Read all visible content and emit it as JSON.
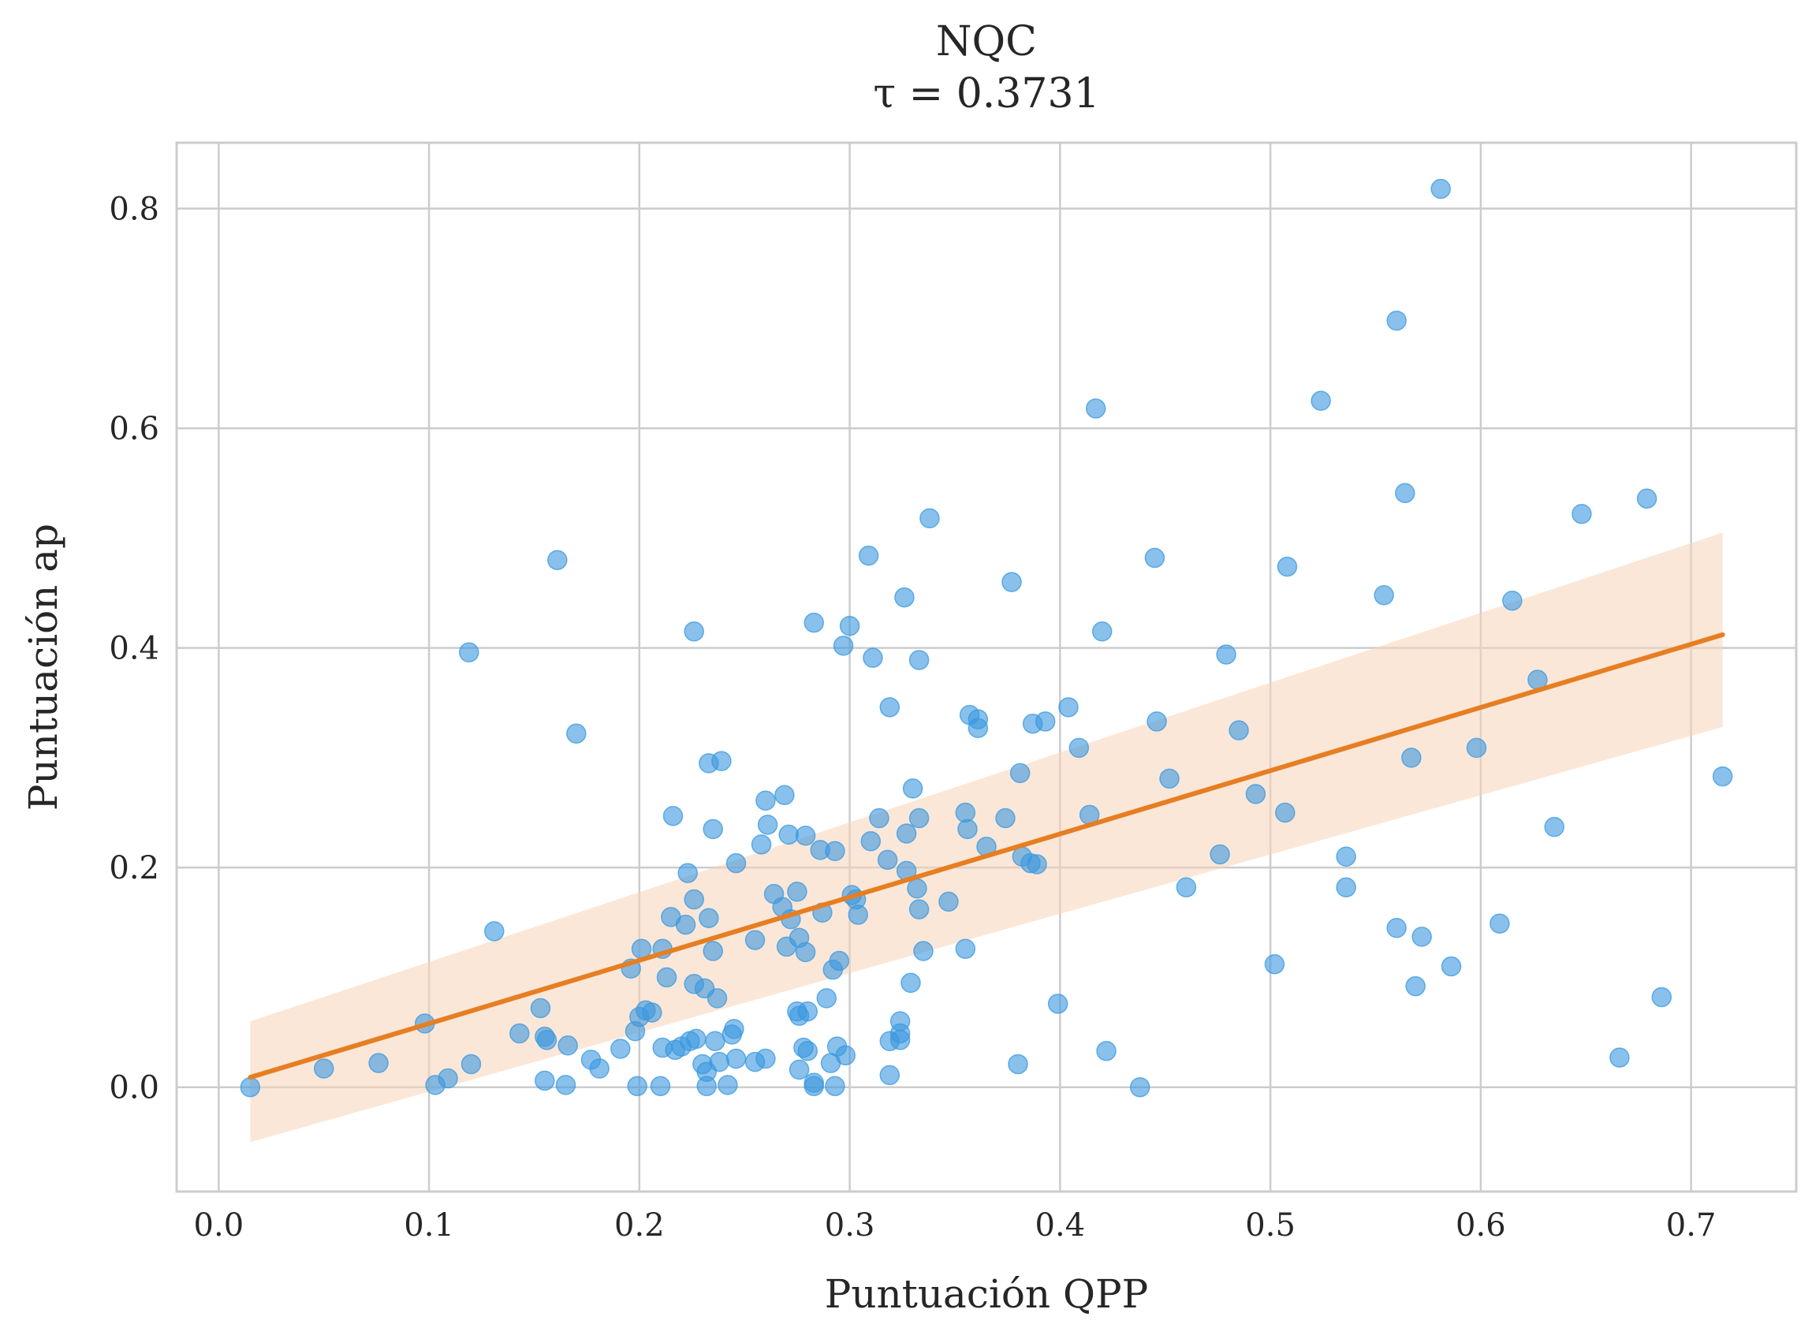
{
  "chart_data": {
    "type": "scatter",
    "title": "NQC",
    "subtitle": "τ = 0.3731",
    "xlabel": "Puntuación QPP",
    "ylabel": "Puntuación ap",
    "xlim": [
      -0.02,
      0.75
    ],
    "ylim": [
      -0.095,
      0.86
    ],
    "xticks": [
      0.0,
      0.1,
      0.2,
      0.3,
      0.4,
      0.5,
      0.6,
      0.7
    ],
    "xtick_labels": [
      "0.0",
      "0.1",
      "0.2",
      "0.3",
      "0.4",
      "0.5",
      "0.6",
      "0.7"
    ],
    "yticks": [
      0.0,
      0.2,
      0.4,
      0.6,
      0.8
    ],
    "ytick_labels": [
      "0.0",
      "0.2",
      "0.4",
      "0.6",
      "0.8"
    ],
    "grid": true,
    "colors": {
      "points": "#3a98e0",
      "regression": "#e67e22",
      "band": "#f7d4b8",
      "grid": "#cccccc",
      "text": "#262626"
    },
    "regression": {
      "x": [
        0.015,
        0.715
      ],
      "y": [
        0.009,
        0.412
      ],
      "ci_lower": [
        -0.05,
        0.328
      ],
      "ci_upper": [
        0.06,
        0.505
      ]
    },
    "points": [
      [
        0.015,
        0.0
      ],
      [
        0.05,
        0.017
      ],
      [
        0.076,
        0.022
      ],
      [
        0.098,
        0.058
      ],
      [
        0.103,
        0.002
      ],
      [
        0.109,
        0.008
      ],
      [
        0.119,
        0.396
      ],
      [
        0.12,
        0.021
      ],
      [
        0.131,
        0.142
      ],
      [
        0.143,
        0.049
      ],
      [
        0.153,
        0.072
      ],
      [
        0.155,
        0.046
      ],
      [
        0.155,
        0.006
      ],
      [
        0.156,
        0.043
      ],
      [
        0.161,
        0.48
      ],
      [
        0.165,
        0.002
      ],
      [
        0.166,
        0.038
      ],
      [
        0.17,
        0.322
      ],
      [
        0.177,
        0.025
      ],
      [
        0.181,
        0.017
      ],
      [
        0.191,
        0.035
      ],
      [
        0.196,
        0.108
      ],
      [
        0.198,
        0.051
      ],
      [
        0.199,
        0.001
      ],
      [
        0.2,
        0.064
      ],
      [
        0.201,
        0.126
      ],
      [
        0.203,
        0.07
      ],
      [
        0.206,
        0.068
      ],
      [
        0.21,
        0.001
      ],
      [
        0.211,
        0.126
      ],
      [
        0.211,
        0.036
      ],
      [
        0.213,
        0.1
      ],
      [
        0.215,
        0.155
      ],
      [
        0.216,
        0.247
      ],
      [
        0.217,
        0.034
      ],
      [
        0.22,
        0.037
      ],
      [
        0.222,
        0.148
      ],
      [
        0.223,
        0.195
      ],
      [
        0.224,
        0.042
      ],
      [
        0.226,
        0.415
      ],
      [
        0.226,
        0.171
      ],
      [
        0.226,
        0.094
      ],
      [
        0.227,
        0.044
      ],
      [
        0.23,
        0.021
      ],
      [
        0.231,
        0.09
      ],
      [
        0.232,
        0.014
      ],
      [
        0.232,
        0.001
      ],
      [
        0.233,
        0.154
      ],
      [
        0.233,
        0.295
      ],
      [
        0.235,
        0.235
      ],
      [
        0.235,
        0.124
      ],
      [
        0.236,
        0.042
      ],
      [
        0.237,
        0.081
      ],
      [
        0.238,
        0.023
      ],
      [
        0.239,
        0.297
      ],
      [
        0.242,
        0.002
      ],
      [
        0.244,
        0.048
      ],
      [
        0.245,
        0.053
      ],
      [
        0.246,
        0.026
      ],
      [
        0.246,
        0.204
      ],
      [
        0.255,
        0.023
      ],
      [
        0.255,
        0.134
      ],
      [
        0.258,
        0.221
      ],
      [
        0.26,
        0.026
      ],
      [
        0.26,
        0.261
      ],
      [
        0.261,
        0.239
      ],
      [
        0.264,
        0.176
      ],
      [
        0.268,
        0.164
      ],
      [
        0.269,
        0.266
      ],
      [
        0.27,
        0.128
      ],
      [
        0.271,
        0.23
      ],
      [
        0.272,
        0.153
      ],
      [
        0.275,
        0.178
      ],
      [
        0.275,
        0.069
      ],
      [
        0.276,
        0.065
      ],
      [
        0.276,
        0.016
      ],
      [
        0.276,
        0.136
      ],
      [
        0.278,
        0.036
      ],
      [
        0.279,
        0.229
      ],
      [
        0.279,
        0.123
      ],
      [
        0.28,
        0.069
      ],
      [
        0.28,
        0.033
      ],
      [
        0.283,
        0.004
      ],
      [
        0.283,
        0.423
      ],
      [
        0.283,
        0.001
      ],
      [
        0.286,
        0.216
      ],
      [
        0.287,
        0.159
      ],
      [
        0.289,
        0.081
      ],
      [
        0.291,
        0.022
      ],
      [
        0.292,
        0.107
      ],
      [
        0.293,
        0.001
      ],
      [
        0.293,
        0.215
      ],
      [
        0.294,
        0.037
      ],
      [
        0.295,
        0.115
      ],
      [
        0.297,
        0.402
      ],
      [
        0.298,
        0.029
      ],
      [
        0.3,
        0.42
      ],
      [
        0.301,
        0.175
      ],
      [
        0.303,
        0.171
      ],
      [
        0.304,
        0.157
      ],
      [
        0.309,
        0.484
      ],
      [
        0.31,
        0.224
      ],
      [
        0.311,
        0.391
      ],
      [
        0.314,
        0.245
      ],
      [
        0.318,
        0.207
      ],
      [
        0.319,
        0.346
      ],
      [
        0.319,
        0.042
      ],
      [
        0.319,
        0.011
      ],
      [
        0.324,
        0.06
      ],
      [
        0.324,
        0.049
      ],
      [
        0.324,
        0.043
      ],
      [
        0.326,
        0.446
      ],
      [
        0.327,
        0.231
      ],
      [
        0.327,
        0.197
      ],
      [
        0.329,
        0.095
      ],
      [
        0.33,
        0.272
      ],
      [
        0.332,
        0.181
      ],
      [
        0.333,
        0.245
      ],
      [
        0.333,
        0.162
      ],
      [
        0.333,
        0.389
      ],
      [
        0.335,
        0.124
      ],
      [
        0.338,
        0.518
      ],
      [
        0.347,
        0.169
      ],
      [
        0.355,
        0.126
      ],
      [
        0.355,
        0.25
      ],
      [
        0.356,
        0.235
      ],
      [
        0.357,
        0.339
      ],
      [
        0.361,
        0.327
      ],
      [
        0.361,
        0.335
      ],
      [
        0.365,
        0.219
      ],
      [
        0.374,
        0.245
      ],
      [
        0.377,
        0.46
      ],
      [
        0.38,
        0.021
      ],
      [
        0.381,
        0.286
      ],
      [
        0.382,
        0.21
      ],
      [
        0.386,
        0.204
      ],
      [
        0.387,
        0.331
      ],
      [
        0.389,
        0.203
      ],
      [
        0.393,
        0.333
      ],
      [
        0.399,
        0.076
      ],
      [
        0.404,
        0.346
      ],
      [
        0.409,
        0.309
      ],
      [
        0.414,
        0.248
      ],
      [
        0.417,
        0.618
      ],
      [
        0.42,
        0.415
      ],
      [
        0.422,
        0.033
      ],
      [
        0.438,
        0.0
      ],
      [
        0.445,
        0.482
      ],
      [
        0.446,
        0.333
      ],
      [
        0.452,
        0.281
      ],
      [
        0.46,
        0.182
      ],
      [
        0.476,
        0.212
      ],
      [
        0.479,
        0.394
      ],
      [
        0.485,
        0.325
      ],
      [
        0.493,
        0.267
      ],
      [
        0.502,
        0.112
      ],
      [
        0.507,
        0.25
      ],
      [
        0.508,
        0.474
      ],
      [
        0.524,
        0.625
      ],
      [
        0.536,
        0.21
      ],
      [
        0.536,
        0.182
      ],
      [
        0.554,
        0.448
      ],
      [
        0.56,
        0.698
      ],
      [
        0.56,
        0.145
      ],
      [
        0.564,
        0.541
      ],
      [
        0.567,
        0.3
      ],
      [
        0.569,
        0.092
      ],
      [
        0.572,
        0.137
      ],
      [
        0.581,
        0.818
      ],
      [
        0.586,
        0.11
      ],
      [
        0.598,
        0.309
      ],
      [
        0.609,
        0.149
      ],
      [
        0.615,
        0.443
      ],
      [
        0.627,
        0.371
      ],
      [
        0.635,
        0.237
      ],
      [
        0.648,
        0.522
      ],
      [
        0.666,
        0.027
      ],
      [
        0.679,
        0.536
      ],
      [
        0.686,
        0.082
      ],
      [
        0.715,
        0.283
      ]
    ]
  }
}
